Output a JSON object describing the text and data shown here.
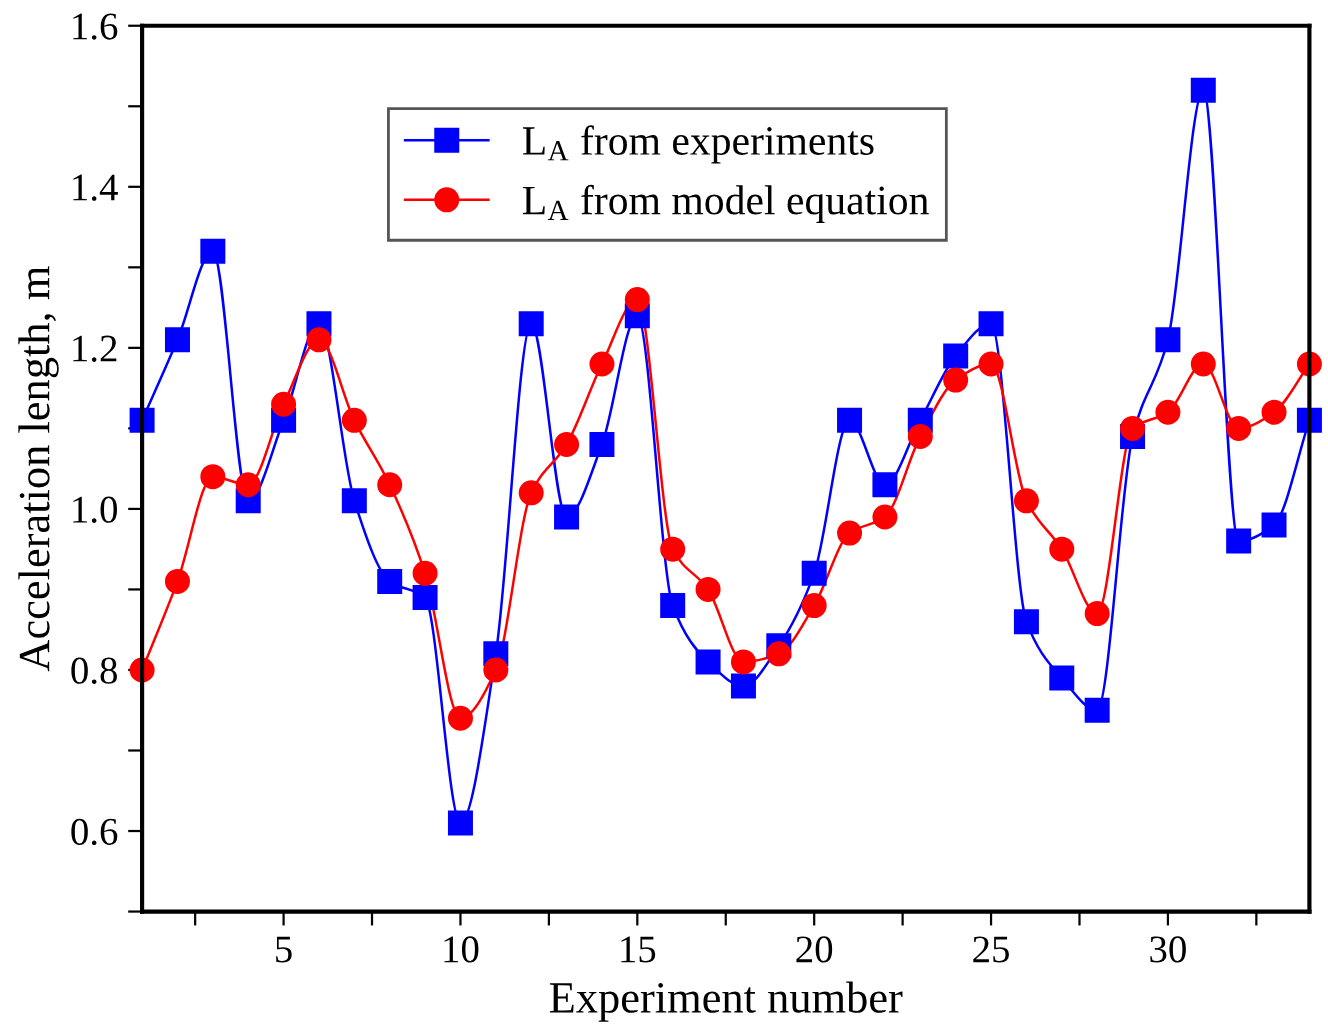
{
  "chart_data": {
    "type": "line",
    "xlabel": "Experiment number",
    "ylabel": "Acceleration length, m",
    "x": [
      1,
      2,
      3,
      4,
      5,
      6,
      7,
      8,
      9,
      10,
      11,
      12,
      13,
      14,
      15,
      16,
      17,
      18,
      19,
      20,
      21,
      22,
      23,
      24,
      25,
      26,
      27,
      28,
      29,
      30,
      31,
      32,
      33,
      34
    ],
    "series": [
      {
        "name": "L$_{A}$ from experiments",
        "color": "#0000ff",
        "marker": "square",
        "values": [
          1.11,
          1.21,
          1.32,
          1.01,
          1.11,
          1.23,
          1.01,
          0.91,
          0.89,
          0.61,
          0.82,
          1.23,
          0.99,
          1.08,
          1.24,
          0.88,
          0.81,
          0.78,
          0.83,
          0.92,
          1.11,
          1.03,
          1.11,
          1.19,
          1.23,
          0.86,
          0.79,
          0.75,
          1.09,
          1.21,
          1.52,
          0.96,
          0.98,
          1.11
        ]
      },
      {
        "name": "L$_{A}$ from model equation",
        "color": "#ff0000",
        "marker": "circle",
        "values": [
          0.8,
          0.91,
          1.04,
          1.03,
          1.13,
          1.21,
          1.11,
          1.03,
          0.92,
          0.74,
          0.8,
          1.02,
          1.08,
          1.18,
          1.26,
          0.95,
          0.9,
          0.81,
          0.82,
          0.88,
          0.97,
          0.99,
          1.09,
          1.16,
          1.18,
          1.01,
          0.95,
          0.87,
          1.1,
          1.12,
          1.18,
          1.1,
          1.12,
          1.18
        ]
      }
    ],
    "xlim": [
      1,
      34
    ],
    "xticks": [
      {
        "value": 2.5,
        "label": null
      },
      5,
      {
        "value": 7.5,
        "label": null
      },
      10,
      {
        "value": 12.5,
        "label": null
      },
      15,
      {
        "value": 17.5,
        "label": null
      },
      20,
      {
        "value": 22.5,
        "label": null
      },
      25,
      {
        "value": 27.5,
        "label": null
      },
      30,
      {
        "value": 32.5,
        "label": null
      }
    ],
    "ylim": [
      0.5,
      1.6
    ],
    "yticks": [
      {
        "value": 0.5,
        "label": null
      },
      0.6,
      {
        "value": 0.7,
        "label": null
      },
      0.8,
      {
        "value": 0.9,
        "label": null
      },
      {
        "value": 1.0,
        "label": "1.0"
      },
      {
        "value": 1.1,
        "label": null
      },
      1.2,
      {
        "value": 1.3,
        "label": null
      },
      1.4,
      {
        "value": 1.5,
        "label": null
      },
      1.6
    ],
    "legend": "top",
    "grid": false,
    "line_style": "solid"
  }
}
